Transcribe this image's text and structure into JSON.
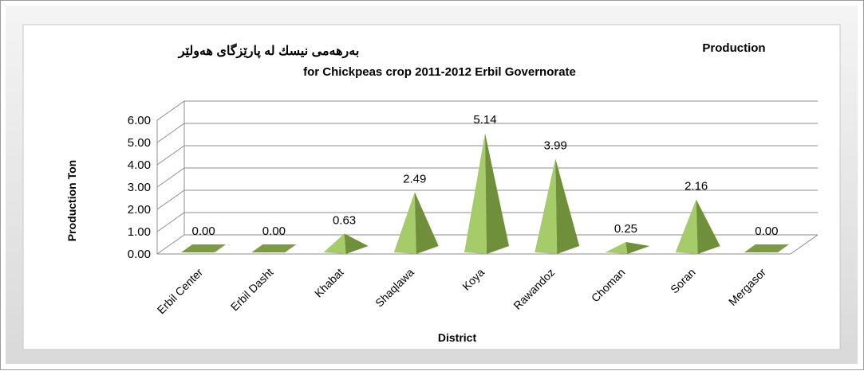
{
  "chart_data": {
    "type": "bar",
    "subtype": "3d-pyramid",
    "title_kurdish": "بەرهەمی نیسك لە پارێزگای هەولێر",
    "title_corner": "Production",
    "title": "for Chickpeas crop  2011-2012 Erbil Governorate",
    "xlabel": "District",
    "ylabel": "Production Ton",
    "categories": [
      "Erbil Center",
      "Erbil Dasht",
      "Khabat",
      "Shaqlawa",
      "Koya",
      "Rawandoz",
      "Choman",
      "Soran",
      "Mergasor"
    ],
    "values": [
      0.0,
      0.0,
      0.63,
      2.49,
      5.14,
      3.99,
      0.25,
      2.16,
      0.0
    ],
    "data_labels": [
      "0.00",
      "0.00",
      "0.63",
      "2.49",
      "5.14",
      "3.99",
      "0.25",
      "2.16",
      "0.00"
    ],
    "y_ticks": [
      "0.00",
      "1.00",
      "2.00",
      "3.00",
      "4.00",
      "5.00",
      "6.00"
    ],
    "ylim": [
      0,
      6
    ],
    "grid": true,
    "legend": "none",
    "colors": {
      "pyramid_light": "#a6cc6a",
      "pyramid_dark": "#6f8f3b",
      "base_flat": "#7d9a45",
      "gridline": "#8c8c8c"
    }
  }
}
